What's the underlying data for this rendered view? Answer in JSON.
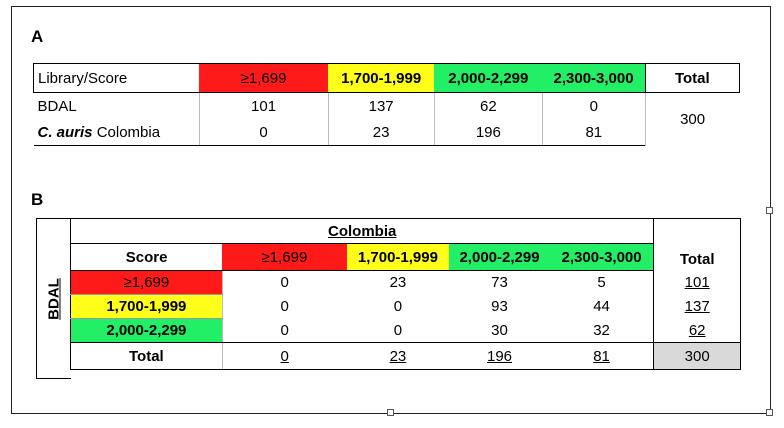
{
  "panel_a": {
    "label": "A",
    "header": [
      "Library/Score",
      "≥1,699",
      "1,700-1,999",
      "2,000-2,299",
      "2,300-3,000",
      "Total"
    ],
    "rows": [
      {
        "name": "BDAL",
        "values": [
          "101",
          "137",
          "62",
          "0"
        ]
      },
      {
        "name_italic": "C. auris",
        "name_rest": " Colombia",
        "values": [
          "0",
          "23",
          "196",
          "81"
        ]
      }
    ],
    "total": "300"
  },
  "panel_b": {
    "label": "B",
    "column_group": "Colombia",
    "row_group": "BDAL",
    "score_label": "Score",
    "columns": [
      "≥1,699",
      "1,700-1,999",
      "2,000-2,299",
      "2,300-3,000"
    ],
    "total_label": "Total",
    "rows": [
      {
        "label": "≥1,699",
        "values": [
          "0",
          "23",
          "73",
          "5"
        ],
        "total": "101"
      },
      {
        "label": "1,700-1,999",
        "values": [
          "0",
          "0",
          "93",
          "44"
        ],
        "total": "137"
      },
      {
        "label": "2,000-2,299",
        "values": [
          "0",
          "0",
          "30",
          "32"
        ],
        "total": "62"
      }
    ],
    "totals_row": {
      "label": "Total",
      "values": [
        "0",
        "23",
        "196",
        "81"
      ],
      "grand_total": "300"
    }
  },
  "colors": {
    "red": "#ff1a1a",
    "yellow": "#ffff1a",
    "green": "#22ee66",
    "gray": "#d9d9d9"
  }
}
